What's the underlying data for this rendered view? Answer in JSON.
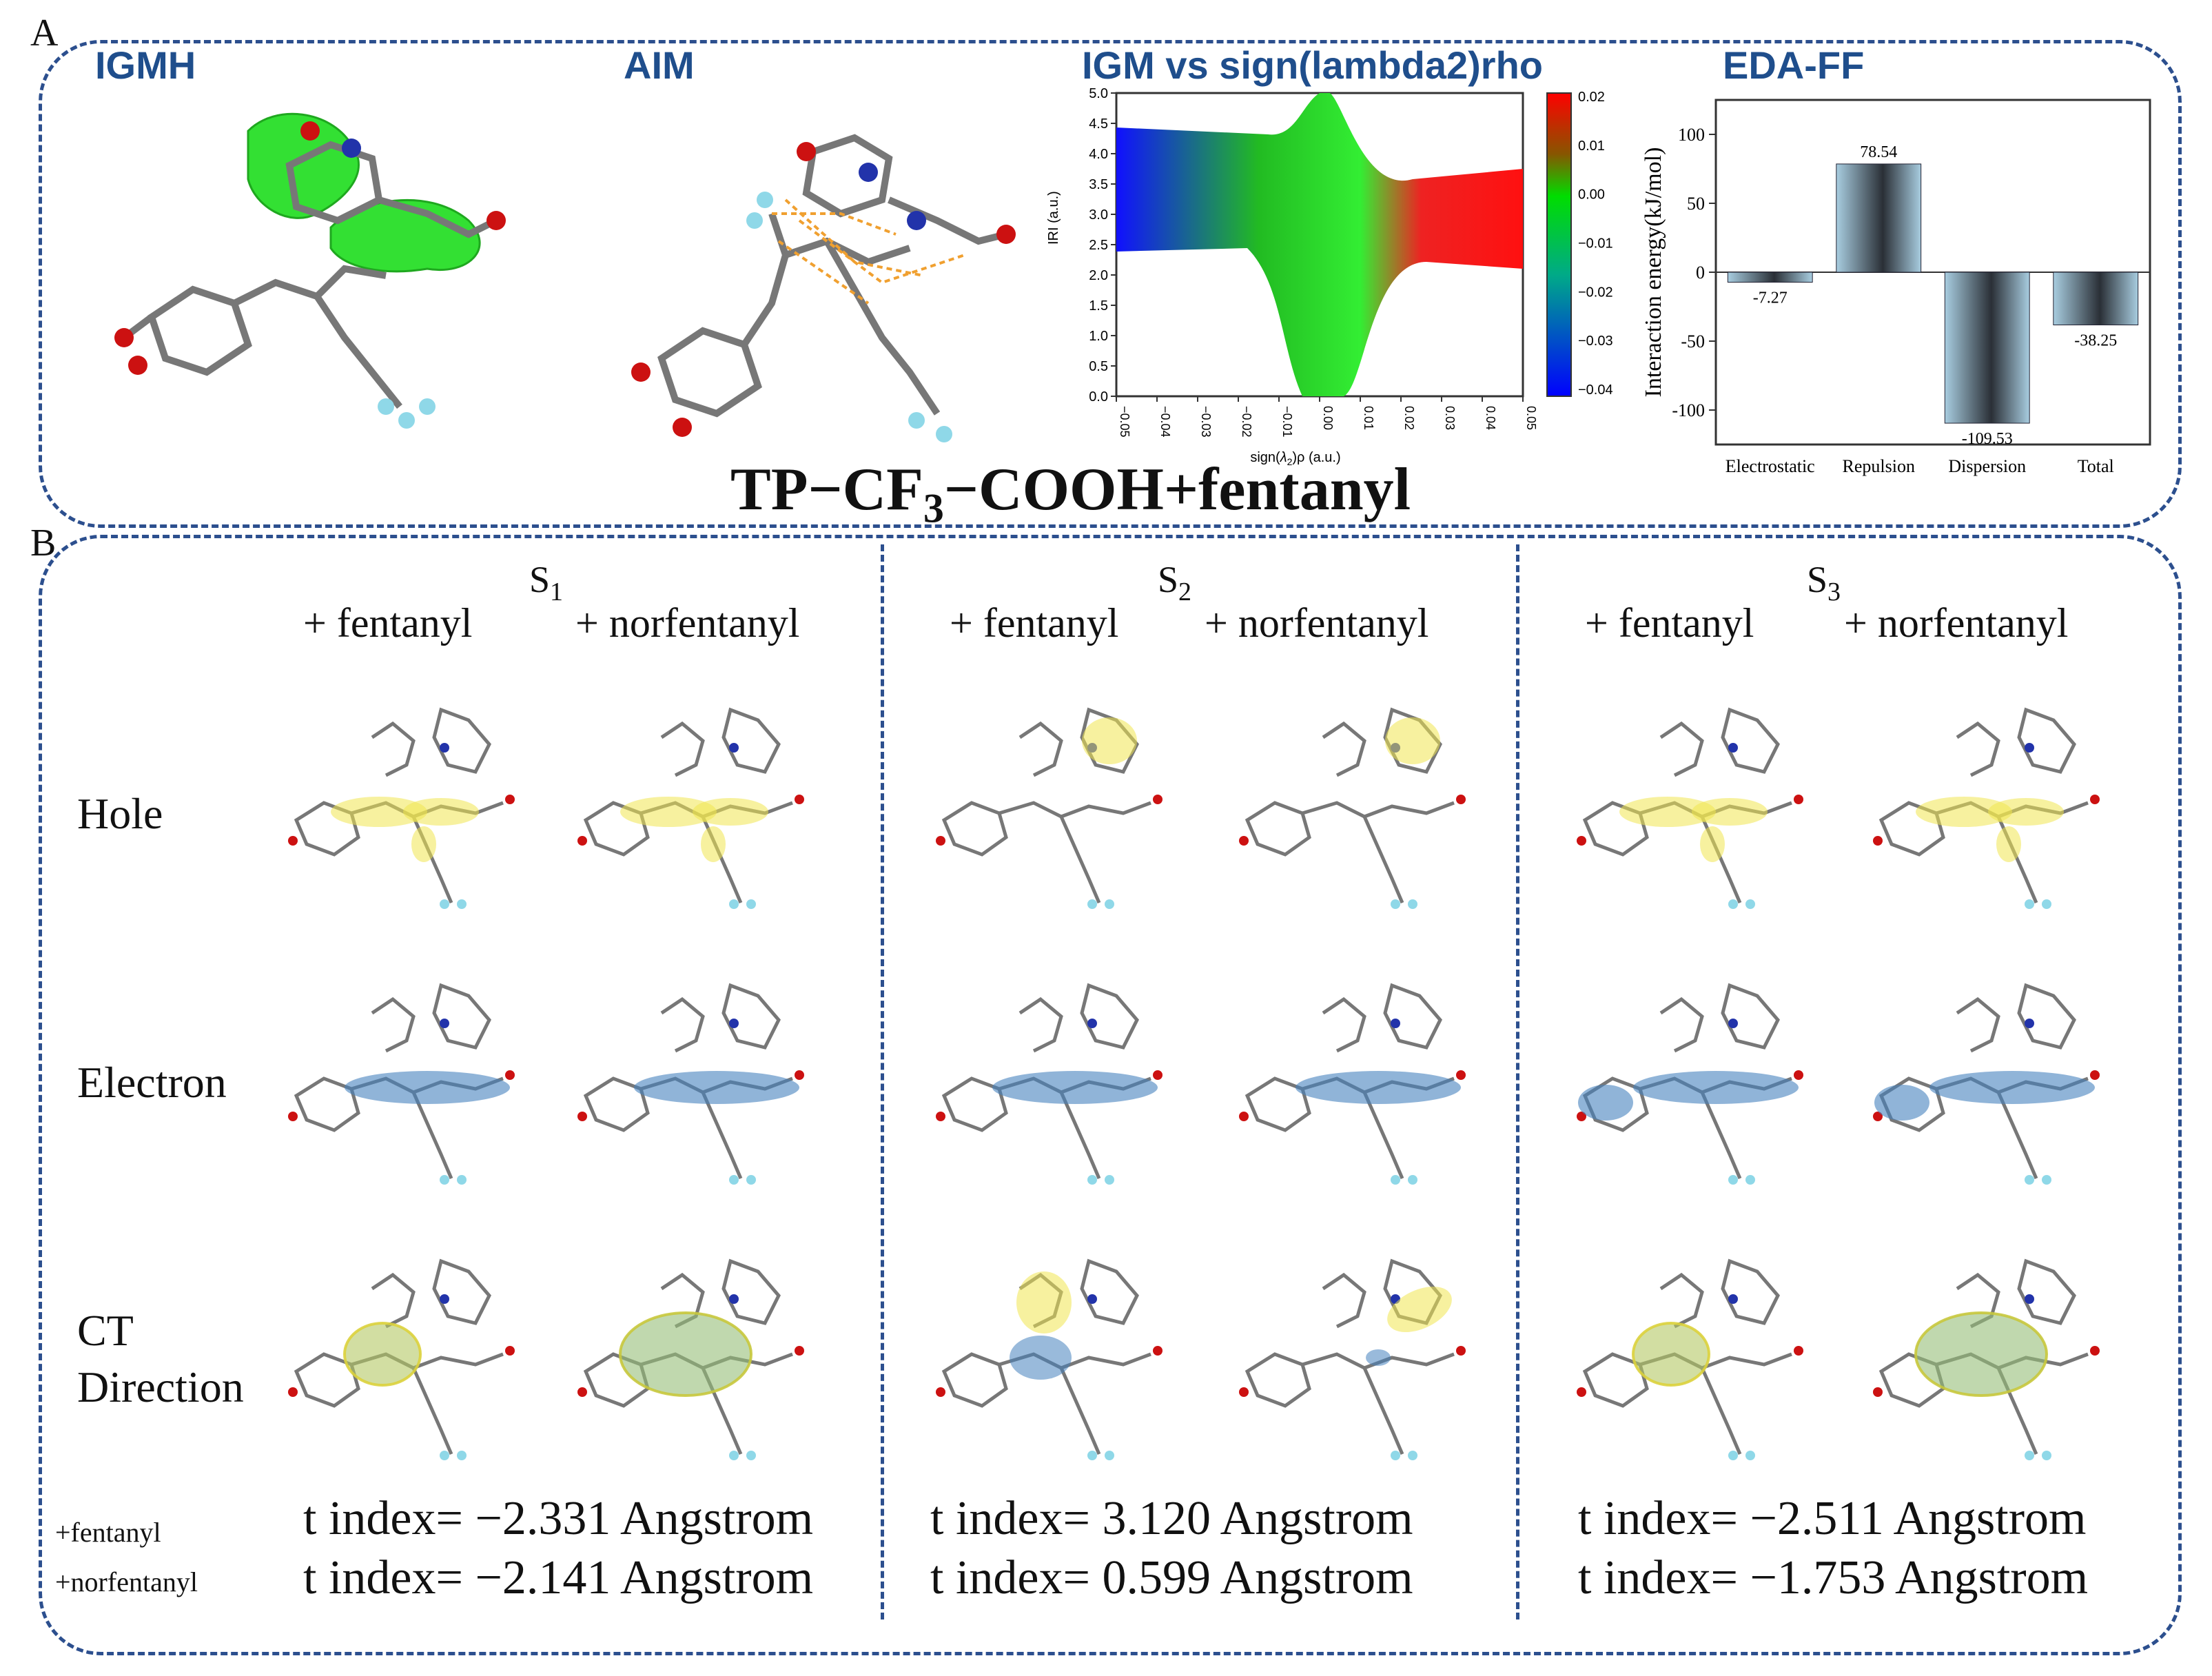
{
  "panelA": {
    "letter": "A",
    "titles": {
      "igmh": "IGMH",
      "aim": "AIM",
      "igm": "IGM vs sign(lambda2)rho",
      "eda": "EDA-FF"
    },
    "compound": {
      "part1": "TP−CF",
      "sub": "3",
      "part2": "−COOH+fentanyl"
    }
  },
  "igm_plot": {
    "ylabel": "IRI (a.u.)",
    "xlabel_pre": "sign(",
    "xlabel_lambda": "λ",
    "xlabel_sub": "2",
    "xlabel_post": ")ρ (a.u.)",
    "x_ticks": [
      "−0.05",
      "−0.04",
      "−0.03",
      "−0.02",
      "−0.01",
      "0.00",
      "0.01",
      "0.02",
      "0.03",
      "0.04",
      "0.05"
    ],
    "y_ticks": [
      "0.0",
      "0.5",
      "1.0",
      "1.5",
      "2.0",
      "2.5",
      "3.0",
      "3.5",
      "4.0",
      "4.5",
      "5.0"
    ],
    "colorbar_ticks": [
      "0.02",
      "0.01",
      "0.00",
      "−0.01",
      "−0.02",
      "−0.03",
      "−0.04"
    ]
  },
  "chart_data": {
    "type": "bar",
    "title": "EDA-FF",
    "categories": [
      "Electrostatic",
      "Repulsion",
      "Dispersion",
      "Total"
    ],
    "values": [
      -7.27,
      78.54,
      -109.53,
      -38.25
    ],
    "value_labels": [
      "-7.27",
      "78.54",
      "-109.53",
      "-38.25"
    ],
    "ylabel": "Interaction energy(kJ/mol)",
    "y_ticks": [
      "100",
      "50",
      "0",
      "-50",
      "-100"
    ],
    "ylim": [
      -125,
      125
    ]
  },
  "panelB": {
    "letter": "B",
    "states": [
      {
        "s": "S",
        "sub": "1"
      },
      {
        "s": "S",
        "sub": "2"
      },
      {
        "s": "S",
        "sub": "3"
      }
    ],
    "col_labels": {
      "fentanyl": "+ fentanyl",
      "norfentanyl": "+ norfentanyl"
    },
    "rows": {
      "hole": "Hole",
      "electron": "Electron",
      "ct1": "CT",
      "ct2": "Direction"
    },
    "legend": {
      "fentanyl": "+fentanyl",
      "norfentanyl": "+norfentanyl"
    },
    "t_index": [
      {
        "fentanyl": "t index= −2.331 Angstrom",
        "norfentanyl": "t index= −2.141 Angstrom"
      },
      {
        "fentanyl": "t index= 3.120 Angstrom",
        "norfentanyl": "t index= 0.599 Angstrom"
      },
      {
        "fentanyl": "t index= −2.511 Angstrom",
        "norfentanyl": "t index= −1.753 Angstrom"
      }
    ]
  }
}
